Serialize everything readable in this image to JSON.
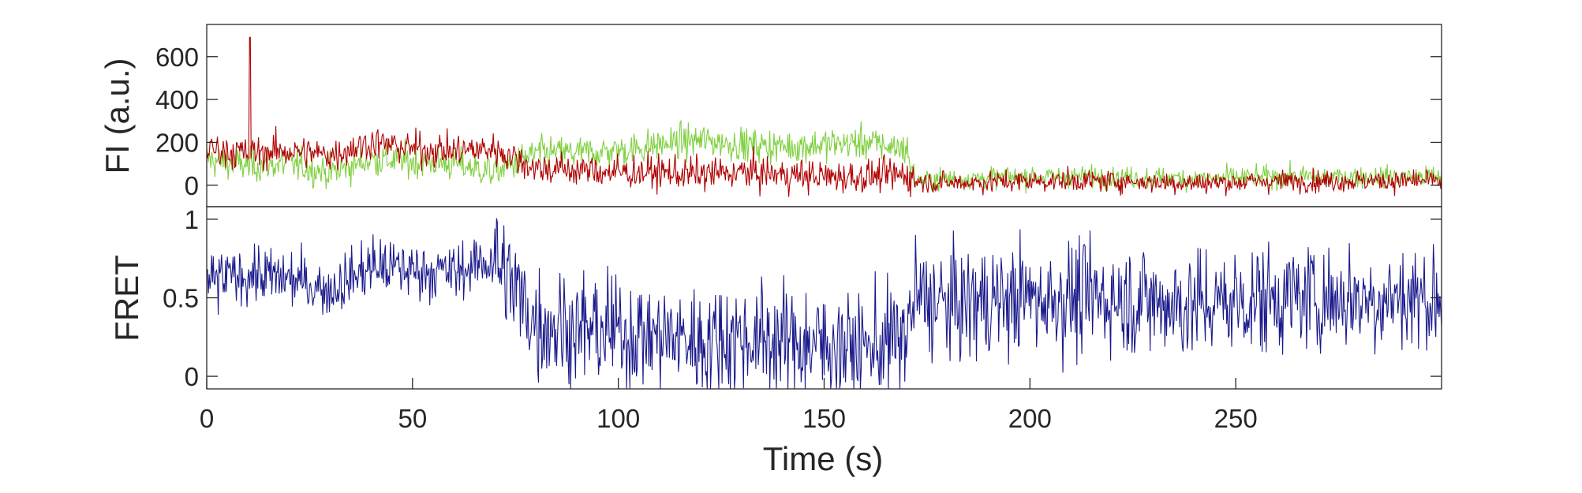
{
  "chart_data": [
    {
      "type": "line",
      "ylabel": "FI (a.u.)",
      "xlabel": "",
      "xlim": [
        0,
        300
      ],
      "ylim": [
        -100,
        750
      ],
      "yticks": [
        0,
        200,
        400,
        600
      ],
      "yticklabels": [
        "0",
        "200",
        "400",
        "600"
      ],
      "grid": false,
      "series": [
        {
          "color": "#80d040",
          "x": [
            0,
            10,
            20,
            30,
            40,
            50,
            60,
            70,
            80,
            90,
            100,
            110,
            120,
            130,
            140,
            150,
            160,
            170,
            172,
            180,
            200,
            220,
            240,
            260,
            280,
            300
          ],
          "values": [
            120,
            90,
            100,
            60,
            120,
            110,
            100,
            60,
            150,
            150,
            160,
            190,
            210,
            190,
            180,
            190,
            200,
            170,
            20,
            30,
            40,
            40,
            30,
            40,
            40,
            40
          ]
        },
        {
          "color": "#b00000",
          "x": [
            0,
            10,
            20,
            30,
            40,
            50,
            60,
            70,
            80,
            90,
            100,
            110,
            120,
            130,
            140,
            150,
            160,
            170,
            172,
            180,
            200,
            220,
            240,
            260,
            280,
            300
          ],
          "values": [
            170,
            150,
            160,
            140,
            200,
            170,
            160,
            170,
            80,
            70,
            60,
            60,
            50,
            60,
            50,
            40,
            40,
            50,
            20,
            10,
            20,
            20,
            10,
            20,
            20,
            20
          ]
        }
      ]
    },
    {
      "type": "line",
      "ylabel": "FRET",
      "xlabel": "Time (s)",
      "xlim": [
        0,
        300
      ],
      "ylim": [
        -0.08,
        1.08
      ],
      "yticks": [
        0,
        0.5,
        1
      ],
      "yticklabels": [
        "0",
        "0.5",
        "1"
      ],
      "xticks": [
        0,
        50,
        100,
        150,
        200,
        250
      ],
      "xticklabels": [
        "0",
        "50",
        "100",
        "150",
        "200",
        "250"
      ],
      "grid": false,
      "series": [
        {
          "color": "#1a1a8c",
          "x": [
            0,
            10,
            20,
            30,
            40,
            50,
            60,
            70,
            80,
            90,
            100,
            110,
            120,
            130,
            140,
            150,
            160,
            170,
            172,
            180,
            200,
            220,
            240,
            260,
            280,
            300
          ],
          "values": [
            0.6,
            0.65,
            0.62,
            0.55,
            0.7,
            0.68,
            0.66,
            0.75,
            0.35,
            0.3,
            0.28,
            0.25,
            0.22,
            0.25,
            0.22,
            0.2,
            0.18,
            0.25,
            0.5,
            0.45,
            0.5,
            0.5,
            0.45,
            0.5,
            0.5,
            0.5
          ]
        }
      ]
    }
  ]
}
